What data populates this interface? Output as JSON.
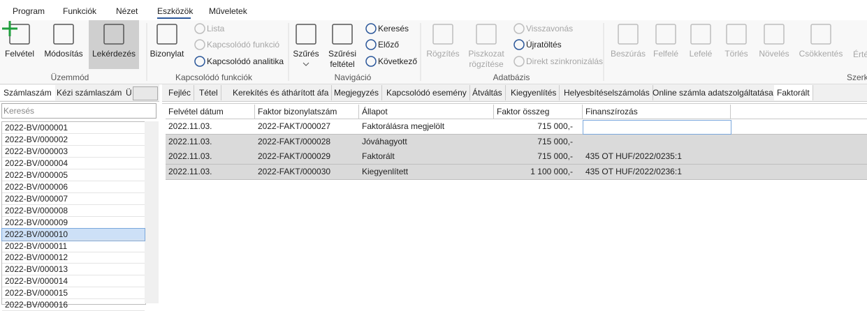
{
  "menu": {
    "items": [
      "Program",
      "Funkciók",
      "Nézet",
      "Eszközök",
      "Műveletek"
    ],
    "active": 3
  },
  "ribbon": {
    "groups": [
      {
        "label": "Üzemmód",
        "buttons": [
          "Felvétel",
          "Módosítás",
          "Lekérdezés"
        ]
      },
      {
        "label": "Kapcsolódó funkciók",
        "buttons": [
          "Bizonylat",
          "Lista",
          "Kapcsolódó funkció",
          "Kapcsolódó analitika"
        ]
      },
      {
        "label": "Navigáció",
        "buttons": [
          "Szűrés",
          "Szűrési feltétel",
          "Keresés",
          "Előző",
          "Következő"
        ]
      },
      {
        "label": "Adatbázis",
        "buttons": [
          "Rögzítés",
          "Piszkozat rögzítése",
          "Visszavonás",
          "Újratöltés",
          "Direkt szinkronizálás"
        ]
      },
      {
        "label": "Szerke",
        "buttons": [
          "Beszúrás",
          "Felfelé",
          "Lefelé",
          "Törlés",
          "Növelés",
          "Csökkentés",
          "Érté"
        ]
      }
    ]
  },
  "left_panel": {
    "tabs": [
      "Számlaszám",
      "Kézi számlaszám",
      "Ü"
    ],
    "active": 0,
    "search_placeholder": "Keresés",
    "items": [
      "2022-BV/000001",
      "2022-BV/000002",
      "2022-BV/000003",
      "2022-BV/000004",
      "2022-BV/000005",
      "2022-BV/000006",
      "2022-BV/000007",
      "2022-BV/000008",
      "2022-BV/000009",
      "2022-BV/000010",
      "2022-BV/000011",
      "2022-BV/000012",
      "2022-BV/000013",
      "2022-BV/000014",
      "2022-BV/000015",
      "2022-BV/000016"
    ],
    "selected": 9
  },
  "detail_tabs": {
    "tabs": [
      "Fejléc",
      "Tétel",
      "Kerekítés és áthárított áfa",
      "Megjegyzés",
      "Kapcsolódó esemény",
      "Átváltás",
      "Kiegyenlítés",
      "Helyesbítéselszámolás",
      "Online számla adatszolgáltatása",
      "Faktorált"
    ],
    "active": 9
  },
  "table": {
    "columns": [
      "Felvétel dátum",
      "Faktor bizonylatszám",
      "Állapot",
      "Faktor összeg",
      "Finanszírozás"
    ],
    "rows": [
      [
        "2022.11.03.",
        "2022-FAKT/000027",
        "Faktorálásra megjelölt",
        "715 000,-",
        null
      ],
      [
        "2022.11.03.",
        "2022-FAKT/000028",
        "Jóváhagyott",
        "715 000,-",
        null
      ],
      [
        "2022.11.03.",
        "2022-FAKT/000029",
        "Faktorált",
        "715 000,-",
        "435 OT HUF/2022/0235:1"
      ],
      [
        "2022.11.03.",
        "2022-FAKT/000030",
        "Kiegyenlített",
        "1 100 000,-",
        "435 OT HUF/2022/0236:1"
      ]
    ]
  }
}
